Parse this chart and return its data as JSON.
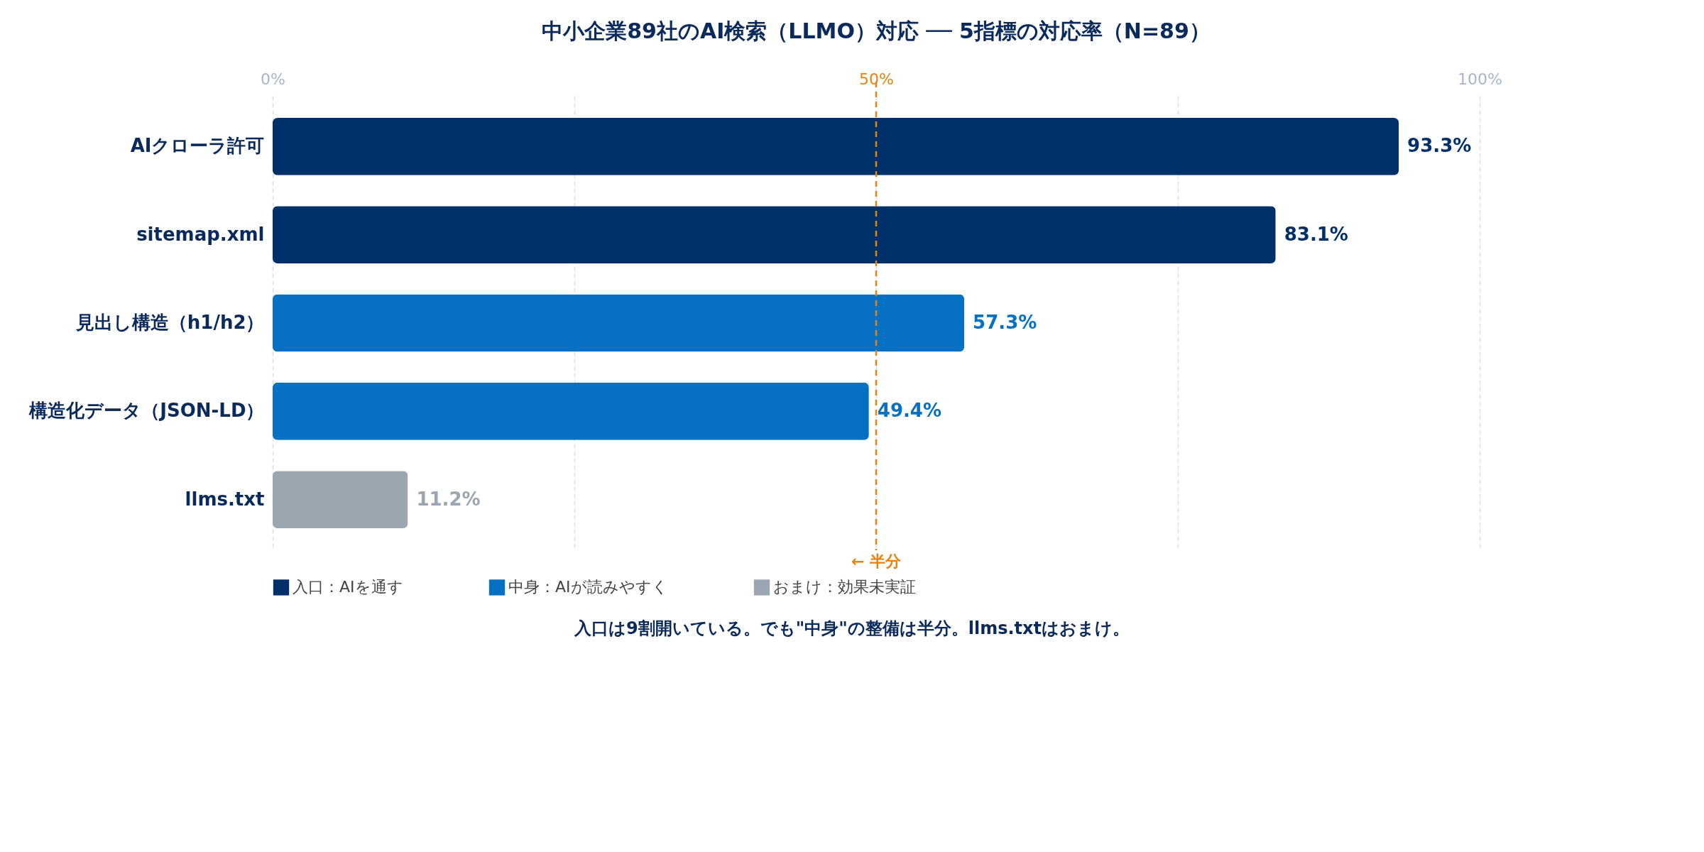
{
  "chart_data": {
    "type": "bar",
    "orientation": "horizontal",
    "title": "中小企業89社のAI検索（LLMO）対応 ── 5指標の対応率（N=89）",
    "categories": [
      "AIクローラ許可",
      "sitemap.xml",
      "見出し構造（h1/h2）",
      "構造化データ（JSON-LD）",
      "llms.txt"
    ],
    "series": [
      {
        "name": "入口：AIを通す",
        "color": "#00306a",
        "values": [
          93.3,
          83.1,
          null,
          null,
          null
        ],
        "value_labels": [
          "93.3%",
          "83.1%",
          null,
          null,
          null
        ]
      },
      {
        "name": "中身：AIが読みやすく",
        "color": "#0671c2",
        "values": [
          null,
          null,
          57.3,
          49.4,
          null
        ],
        "value_labels": [
          null,
          null,
          "57.3%",
          "49.4%",
          null
        ]
      },
      {
        "name": "おまけ：効果未実証",
        "color": "#9ca6b1",
        "values": [
          null,
          null,
          null,
          null,
          11.2
        ],
        "value_labels": [
          null,
          null,
          null,
          null,
          "11.2%"
        ]
      }
    ],
    "xlim": [
      0,
      100
    ],
    "xticks": [
      {
        "value": 0,
        "label": "0%"
      },
      {
        "value": 25,
        "label": null
      },
      {
        "value": 50,
        "label": "50%"
      },
      {
        "value": 75,
        "label": null
      },
      {
        "value": 100,
        "label": "100%"
      }
    ],
    "grid": "x",
    "ref_lines": [
      {
        "axis": "x",
        "value": 50,
        "label": "← 半分",
        "color": "#e8820c",
        "line_style": "dashed"
      }
    ],
    "legend": "bottom",
    "annotations": [
      "入口は9割開いている。でも\"中身\"の整備は半分。llms.txtはおまけ。"
    ]
  }
}
